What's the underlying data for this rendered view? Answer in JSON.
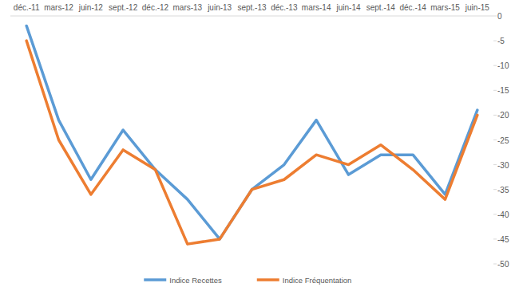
{
  "chart_data": {
    "type": "line",
    "categories": [
      "déc.-11",
      "mars-12",
      "juin-12",
      "sept.-12",
      "déc.-12",
      "mars-13",
      "juin-13",
      "sept.-13",
      "déc.-13",
      "mars-14",
      "juin-14",
      "sept.-14",
      "déc.-14",
      "mars-15",
      "juin-15"
    ],
    "series": [
      {
        "name": "Indice Recettes",
        "color": "#5b9bd5",
        "values": [
          -2,
          -21,
          -33,
          -23,
          -31,
          -37,
          -45,
          -35,
          -30,
          -21,
          -32,
          -28,
          -28,
          -36,
          -19
        ]
      },
      {
        "name": "Indice Fréquentation",
        "color": "#ed7d31",
        "values": [
          -5,
          -25,
          -36,
          -27,
          -31,
          -46,
          -45,
          -35,
          -33,
          -28,
          -30,
          -26,
          -31,
          -37,
          -20
        ]
      }
    ],
    "ylim": [
      -50,
      0
    ],
    "yticks": [
      0,
      -5,
      -10,
      -15,
      -20,
      -25,
      -30,
      -35,
      -40,
      -45,
      -50
    ],
    "grid": false,
    "legend": "bottom"
  }
}
